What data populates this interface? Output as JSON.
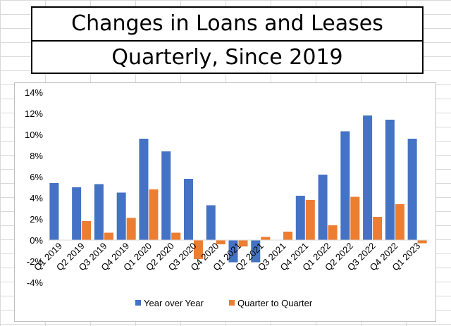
{
  "title_line1": "Changes in Loans and Leases",
  "title_line2": "Quarterly, Since 2019",
  "chart_data": {
    "type": "bar",
    "title": "",
    "xlabel": "",
    "ylabel": "",
    "ylim": [
      -0.04,
      0.14
    ],
    "y_ticks": [
      "-4%",
      "-2%",
      "0%",
      "2%",
      "4%",
      "6%",
      "8%",
      "10%",
      "12%",
      "14%"
    ],
    "grid": false,
    "legend_position": "bottom",
    "categories": [
      "Q1 2019",
      "Q2 2019",
      "Q3 2019",
      "Q4 2019",
      "Q1 2020",
      "Q2 2020",
      "Q3 2020",
      "Q4 2020",
      "Q1 2021",
      "Q2 2021",
      "Q3 2021",
      "Q4 2021",
      "Q1 2022",
      "Q2 2022",
      "Q3 2022",
      "Q4 2022",
      "Q1 2023"
    ],
    "series": [
      {
        "name": "Year over Year",
        "color": "#4472C4",
        "values": [
          0.054,
          0.05,
          0.053,
          0.045,
          0.096,
          0.084,
          0.058,
          0.033,
          -0.021,
          -0.021,
          0.0,
          0.042,
          0.062,
          0.103,
          0.118,
          0.114,
          0.096
        ]
      },
      {
        "name": "Quarter to Quarter",
        "color": "#ED7D31",
        "values": [
          0.0,
          0.018,
          0.007,
          0.021,
          0.048,
          0.007,
          -0.018,
          -0.004,
          -0.006,
          0.003,
          0.008,
          0.038,
          0.014,
          0.041,
          0.022,
          0.034,
          -0.003
        ]
      }
    ]
  }
}
